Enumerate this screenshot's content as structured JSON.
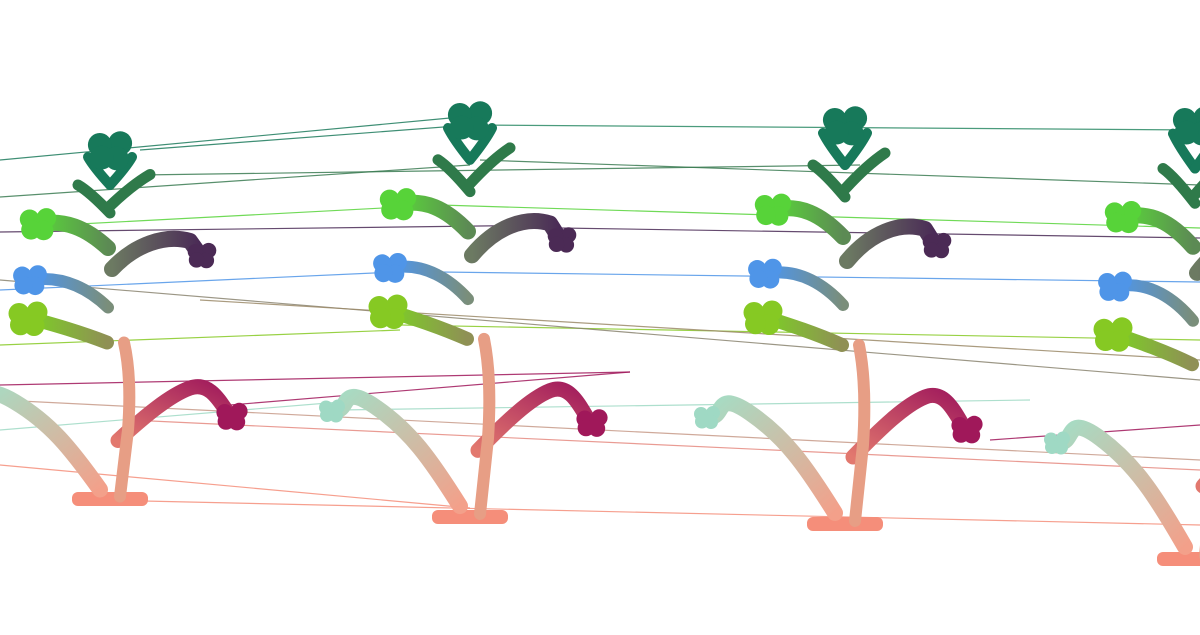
{
  "scene": {
    "description_free": true,
    "background_color": "#ffffff",
    "colors": {
      "top_crown": "#17795a",
      "upper_branch": "#2f7a4a",
      "bright_green": "#57d339",
      "dark_purple": "#4b2a55",
      "blue": "#4f95e8",
      "lime": "#86c923",
      "magenta": "#a0185a",
      "mint": "#9fd9c4",
      "base_salmon": "#f58e7a",
      "stem_mid": "#9b8a68"
    }
  }
}
